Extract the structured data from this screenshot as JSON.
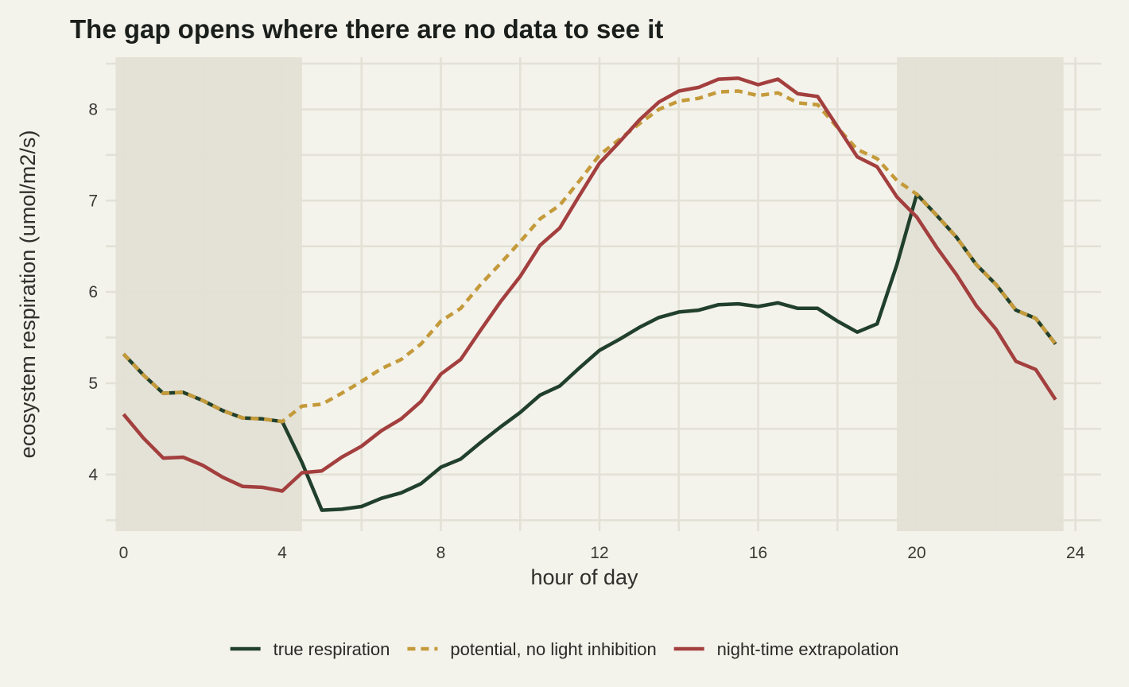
{
  "chart_data": {
    "type": "line",
    "title": "The gap opens where there are no data to see it",
    "xlabel": "hour of day",
    "ylabel": "ecosystem respiration (umol/m2/s)",
    "xlim": [
      -0.45,
      24.65
    ],
    "ylim": [
      3.38,
      8.57
    ],
    "x_ticks": [
      0,
      4,
      8,
      12,
      16,
      20,
      24
    ],
    "y_ticks": [
      4,
      5,
      6,
      7,
      8
    ],
    "grid": true,
    "legend_position": "bottom",
    "shaded_regions": [
      [
        -0.2,
        4.5
      ],
      [
        19.5,
        23.7
      ]
    ],
    "colors": {
      "background": "#f3f2eb",
      "grid": "#e3e1d6",
      "shade": "#e4e2d6"
    },
    "x": [
      0,
      0.5,
      1,
      1.5,
      2,
      2.5,
      3,
      3.5,
      4,
      4.5,
      5,
      5.5,
      6,
      6.5,
      7,
      7.5,
      8,
      8.5,
      9,
      9.5,
      10,
      10.5,
      11,
      11.5,
      12,
      12.5,
      13,
      13.5,
      14,
      14.5,
      15,
      15.5,
      16,
      16.5,
      17,
      17.5,
      18,
      18.5,
      19,
      19.5,
      20,
      20.5,
      21,
      21.5,
      22,
      22.5,
      23,
      23.5
    ],
    "series": [
      {
        "name": "true respiration",
        "color": "#21402c",
        "dash": "solid",
        "values": [
          5.32,
          5.09,
          4.89,
          4.9,
          4.81,
          4.7,
          4.62,
          4.61,
          4.58,
          4.13,
          3.61,
          3.62,
          3.65,
          3.74,
          3.8,
          3.9,
          4.08,
          4.17,
          4.35,
          4.52,
          4.68,
          4.87,
          4.97,
          5.17,
          5.36,
          5.48,
          5.61,
          5.72,
          5.78,
          5.8,
          5.86,
          5.87,
          5.84,
          5.88,
          5.82,
          5.82,
          5.68,
          5.56,
          5.65,
          6.3,
          7.07,
          6.84,
          6.6,
          6.3,
          6.08,
          5.8,
          5.71,
          5.43
        ]
      },
      {
        "name": "potential, no light inhibition",
        "color": "#c49a3a",
        "dash": "dashed",
        "values": [
          5.32,
          5.09,
          4.89,
          4.9,
          4.81,
          4.7,
          4.62,
          4.61,
          4.58,
          4.75,
          4.77,
          4.89,
          5.02,
          5.16,
          5.26,
          5.43,
          5.68,
          5.82,
          6.08,
          6.31,
          6.55,
          6.8,
          6.95,
          7.22,
          7.5,
          7.67,
          7.84,
          8.0,
          8.09,
          8.12,
          8.19,
          8.2,
          8.15,
          8.18,
          8.07,
          8.05,
          7.8,
          7.56,
          7.46,
          7.22,
          7.07,
          6.84,
          6.6,
          6.3,
          6.08,
          5.8,
          5.71,
          5.43
        ]
      },
      {
        "name": "night-time extrapolation",
        "color": "#a33f3e",
        "dash": "solid",
        "values": [
          4.66,
          4.4,
          4.18,
          4.19,
          4.1,
          3.97,
          3.87,
          3.86,
          3.82,
          4.02,
          4.04,
          4.19,
          4.31,
          4.48,
          4.61,
          4.8,
          5.1,
          5.26,
          5.58,
          5.89,
          6.17,
          6.51,
          6.7,
          7.06,
          7.41,
          7.64,
          7.88,
          8.08,
          8.2,
          8.24,
          8.33,
          8.34,
          8.27,
          8.33,
          8.17,
          8.14,
          7.81,
          7.48,
          7.37,
          7.04,
          6.82,
          6.49,
          6.19,
          5.85,
          5.59,
          5.24,
          5.15,
          4.82
        ]
      }
    ]
  }
}
